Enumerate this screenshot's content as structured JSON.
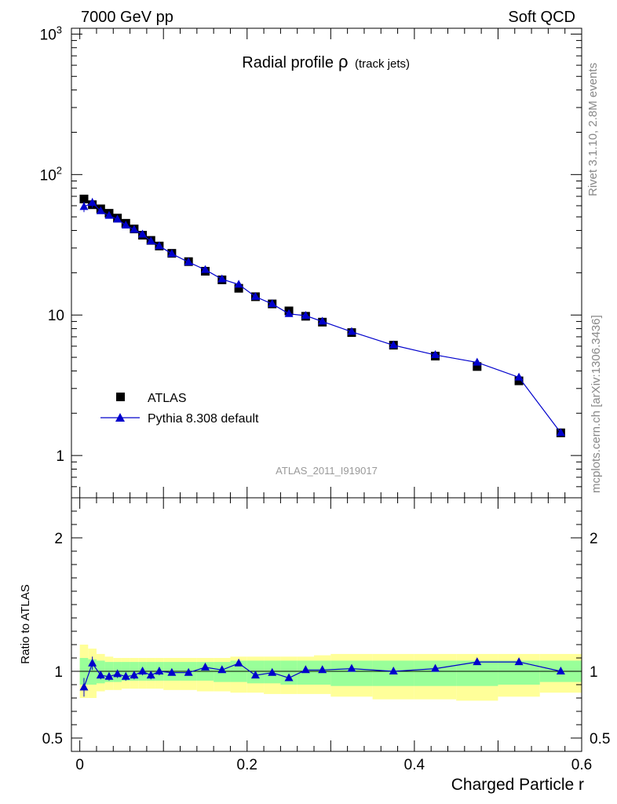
{
  "header": {
    "energy_label": "7000 GeV pp",
    "process_label": "Soft QCD"
  },
  "side_labels": {
    "rivet": "Rivet 3.1.10,  2.8M events",
    "mcplots": "mcplots.cern.ch [arXiv:1306.3436]"
  },
  "colors": {
    "data": "#000000",
    "mc": "#0000cc",
    "band_inner": "#99ff99",
    "band_outer": "#ffff99"
  },
  "chart_data": [
    {
      "type": "scatter",
      "title": "Radial profile",
      "title_symbol": "ρ",
      "title_suffix": "(track jets)",
      "analysis_id": "ATLAS_2011_I919017",
      "xlabel": "",
      "ylabel": "",
      "y_scale": "log",
      "xlim": [
        -0.01,
        0.6
      ],
      "ylim": [
        0.5,
        1100
      ],
      "y_ticks": [
        {
          "value": 1,
          "label": "1"
        },
        {
          "value": 10,
          "label": "10"
        },
        {
          "value": 100,
          "label": "10",
          "exp": "2"
        },
        {
          "value": 1000,
          "label": "10",
          "exp": "3"
        }
      ],
      "legend": {
        "position": "bottom-left"
      },
      "x": [
        0.005,
        0.015,
        0.025,
        0.035,
        0.045,
        0.055,
        0.065,
        0.075,
        0.085,
        0.095,
        0.11,
        0.13,
        0.15,
        0.17,
        0.19,
        0.21,
        0.23,
        0.25,
        0.27,
        0.29,
        0.325,
        0.375,
        0.425,
        0.475,
        0.525,
        0.575
      ],
      "series": [
        {
          "name": "ATLAS",
          "marker": "square",
          "values": [
            67,
            61,
            57,
            53,
            49,
            45,
            41,
            37,
            34,
            31,
            27.5,
            24,
            20.5,
            17.8,
            15.5,
            13.5,
            12,
            10.7,
            9.8,
            8.9,
            7.5,
            6.1,
            5.1,
            4.3,
            3.4,
            1.45
          ],
          "errors": [
            3,
            2,
            2,
            2,
            1.5,
            1.5,
            1.2,
            1,
            1,
            1,
            0.8,
            0.7,
            0.6,
            0.5,
            0.5,
            0.4,
            0.4,
            0.3,
            0.3,
            0.3,
            0.2,
            0.2,
            0.15,
            0.15,
            0.1,
            0.05
          ]
        },
        {
          "name": "Pythia 8.308 default",
          "marker": "triangle",
          "values": [
            59,
            63,
            55,
            51,
            48,
            43.5,
            40.5,
            37.5,
            33.5,
            31,
            27.3,
            23.8,
            21,
            18,
            16.5,
            13.5,
            12,
            10.2,
            9.9,
            9,
            7.6,
            6.1,
            5.2,
            4.6,
            3.6,
            1.45
          ],
          "errors": [
            5,
            5,
            2,
            2,
            2,
            1.5,
            1.2,
            1,
            1,
            1,
            0.8,
            0.7,
            0.6,
            0.5,
            0.5,
            0.4,
            0.4,
            0.3,
            0.3,
            0.3,
            0.2,
            0.2,
            0.15,
            0.15,
            0.1,
            0.05
          ]
        }
      ]
    },
    {
      "type": "line",
      "xlabel": "Charged Particle r",
      "ylabel": "Ratio to ATLAS",
      "xlim": [
        -0.01,
        0.6
      ],
      "ylim": [
        0.4,
        2.3
      ],
      "y_ticks": [
        0.5,
        1,
        2
      ],
      "x_ticks": [
        0,
        0.2,
        0.4,
        0.6
      ],
      "x_bin_edges": [
        0,
        0.01,
        0.02,
        0.03,
        0.04,
        0.05,
        0.06,
        0.07,
        0.08,
        0.09,
        0.1,
        0.12,
        0.14,
        0.16,
        0.18,
        0.2,
        0.22,
        0.24,
        0.26,
        0.28,
        0.3,
        0.35,
        0.4,
        0.45,
        0.5,
        0.55,
        0.6
      ],
      "band_inner_low": [
        0.9,
        0.9,
        0.91,
        0.92,
        0.92,
        0.93,
        0.93,
        0.93,
        0.93,
        0.93,
        0.93,
        0.93,
        0.93,
        0.92,
        0.92,
        0.91,
        0.91,
        0.9,
        0.9,
        0.9,
        0.89,
        0.89,
        0.89,
        0.89,
        0.9,
        0.92
      ],
      "band_inner_high": [
        1.1,
        1.09,
        1.08,
        1.07,
        1.07,
        1.07,
        1.07,
        1.07,
        1.07,
        1.07,
        1.07,
        1.07,
        1.07,
        1.07,
        1.08,
        1.08,
        1.08,
        1.08,
        1.08,
        1.08,
        1.08,
        1.08,
        1.08,
        1.08,
        1.08,
        1.08
      ],
      "band_outer_low": [
        0.8,
        0.8,
        0.85,
        0.86,
        0.86,
        0.87,
        0.87,
        0.87,
        0.87,
        0.87,
        0.86,
        0.86,
        0.85,
        0.85,
        0.84,
        0.84,
        0.83,
        0.83,
        0.83,
        0.83,
        0.81,
        0.79,
        0.79,
        0.78,
        0.81,
        0.84
      ],
      "band_outer_high": [
        1.2,
        1.17,
        1.13,
        1.11,
        1.1,
        1.1,
        1.1,
        1.1,
        1.1,
        1.1,
        1.1,
        1.1,
        1.1,
        1.1,
        1.11,
        1.11,
        1.11,
        1.11,
        1.11,
        1.12,
        1.13,
        1.13,
        1.13,
        1.13,
        1.13,
        1.13
      ],
      "series": [
        {
          "name": "Pythia 8.308 default",
          "values": [
            0.88,
            1.06,
            0.97,
            0.96,
            0.98,
            0.96,
            0.97,
            1.0,
            0.97,
            1.0,
            0.99,
            0.99,
            1.03,
            1.01,
            1.06,
            0.97,
            0.99,
            0.95,
            1.01,
            1.01,
            1.02,
            1.0,
            1.02,
            1.07,
            1.07,
            1.0
          ],
          "errors": [
            0.07,
            0.05,
            0.03,
            0.03,
            0.03,
            0.03,
            0.03,
            0.03,
            0.03,
            0.03,
            0.02,
            0.02,
            0.02,
            0.02,
            0.02,
            0.02,
            0.02,
            0.02,
            0.02,
            0.02,
            0.01,
            0.01,
            0.01,
            0.01,
            0.01,
            0.02
          ]
        }
      ]
    }
  ]
}
